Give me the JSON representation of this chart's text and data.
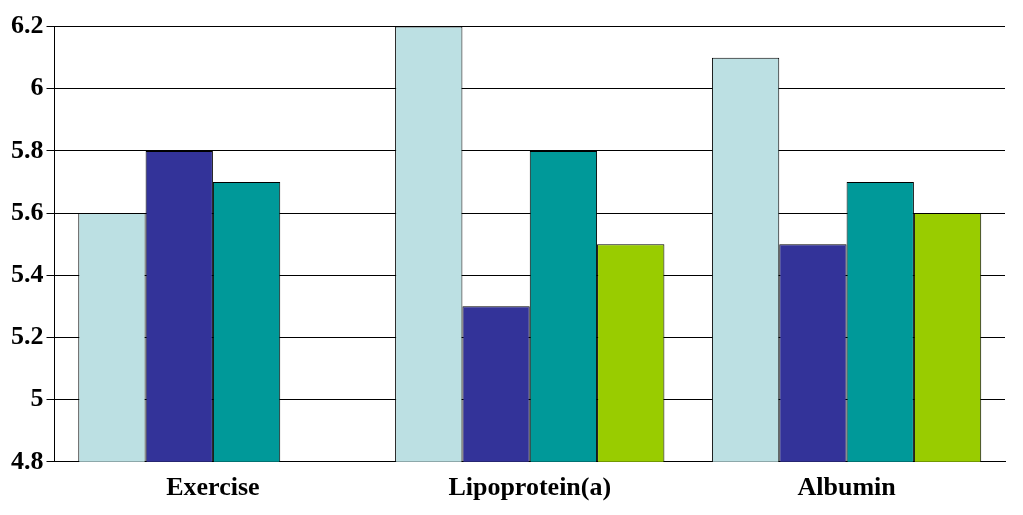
{
  "chart_data": {
    "type": "bar",
    "categories": [
      "Exercise",
      "Lipoprotein(a)",
      "Albumin"
    ],
    "series": [
      {
        "color": "#bce0e3",
        "values": [
          5.6,
          6.2,
          6.1
        ]
      },
      {
        "color": "#333399",
        "values": [
          5.8,
          5.3,
          5.5
        ]
      },
      {
        "color": "#009999",
        "values": [
          5.7,
          5.8,
          5.7
        ]
      },
      {
        "color": "#99cc00",
        "values": [
          null,
          5.5,
          5.6
        ]
      }
    ],
    "ylim": [
      4.8,
      6.2
    ],
    "yticks": [
      4.8,
      5,
      5.2,
      5.4,
      5.6,
      5.8,
      6,
      6.2
    ],
    "grid": "y",
    "legend": false
  }
}
